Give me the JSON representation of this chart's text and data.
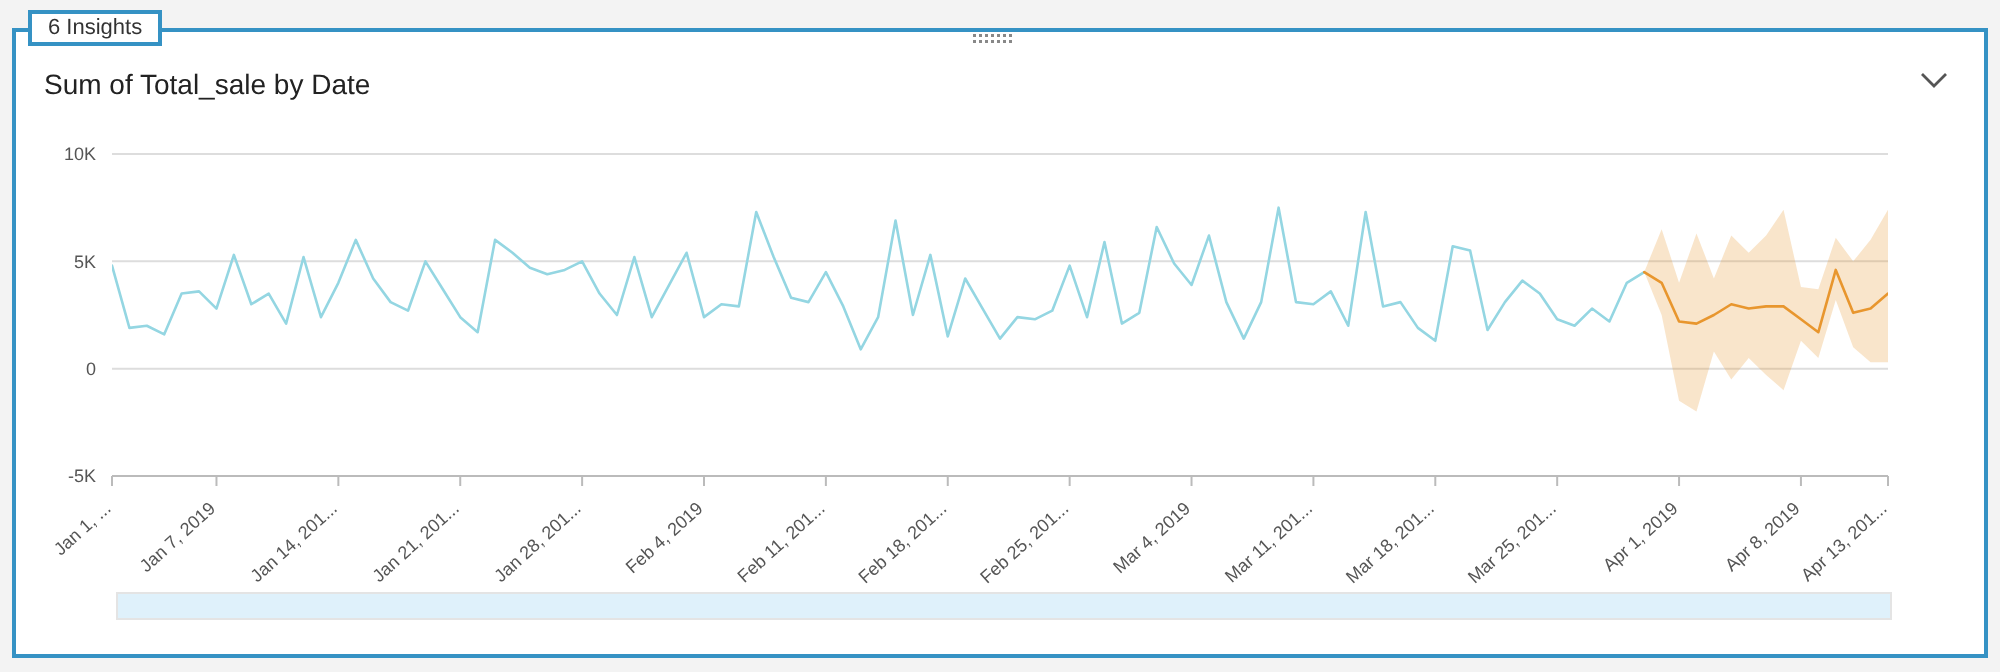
{
  "chart_data": {
    "type": "line",
    "title": "Sum of Total_sale by Date",
    "annotations": [
      "6 Insights"
    ],
    "x": [
      "2019-01-01",
      "2019-01-02",
      "2019-01-03",
      "2019-01-04",
      "2019-01-05",
      "2019-01-06",
      "2019-01-07",
      "2019-01-08",
      "2019-01-09",
      "2019-01-10",
      "2019-01-11",
      "2019-01-12",
      "2019-01-13",
      "2019-01-14",
      "2019-01-15",
      "2019-01-16",
      "2019-01-17",
      "2019-01-18",
      "2019-01-19",
      "2019-01-20",
      "2019-01-21",
      "2019-01-22",
      "2019-01-23",
      "2019-01-24",
      "2019-01-25",
      "2019-01-26",
      "2019-01-27",
      "2019-01-28",
      "2019-01-29",
      "2019-01-30",
      "2019-01-31",
      "2019-02-01",
      "2019-02-02",
      "2019-02-03",
      "2019-02-04",
      "2019-02-05",
      "2019-02-06",
      "2019-02-07",
      "2019-02-08",
      "2019-02-09",
      "2019-02-10",
      "2019-02-11",
      "2019-02-12",
      "2019-02-13",
      "2019-02-14",
      "2019-02-15",
      "2019-02-16",
      "2019-02-17",
      "2019-02-18",
      "2019-02-19",
      "2019-02-20",
      "2019-02-21",
      "2019-02-22",
      "2019-02-23",
      "2019-02-24",
      "2019-02-25",
      "2019-02-26",
      "2019-02-27",
      "2019-02-28",
      "2019-03-01",
      "2019-03-02",
      "2019-03-03",
      "2019-03-04",
      "2019-03-05",
      "2019-03-06",
      "2019-03-07",
      "2019-03-08",
      "2019-03-09",
      "2019-03-10",
      "2019-03-11",
      "2019-03-12",
      "2019-03-13",
      "2019-03-14",
      "2019-03-15",
      "2019-03-16",
      "2019-03-17",
      "2019-03-18",
      "2019-03-19",
      "2019-03-20",
      "2019-03-21",
      "2019-03-22",
      "2019-03-23",
      "2019-03-24",
      "2019-03-25",
      "2019-03-26",
      "2019-03-27",
      "2019-03-28",
      "2019-03-29",
      "2019-03-30"
    ],
    "series": [
      {
        "color": "#94d6e2",
        "values": [
          4800,
          1900,
          2000,
          1600,
          3500,
          3600,
          2800,
          5300,
          3000,
          3500,
          2100,
          5200,
          2400,
          4000,
          6000,
          4200,
          3100,
          2700,
          5000,
          3700,
          2400,
          1700,
          6000,
          5400,
          4700,
          4400,
          4600,
          5000,
          3500,
          2500,
          5200,
          2400,
          3900,
          5400,
          2400,
          3000,
          2900,
          7300,
          5200,
          3300,
          3100,
          4500,
          2900,
          900,
          2400,
          6900,
          2500,
          5300,
          1500,
          4200,
          2800,
          1400,
          2400,
          2300,
          2700,
          4800,
          2400,
          5900,
          2100,
          2600,
          6600,
          4900,
          3900,
          6200,
          3100,
          1400,
          3100,
          7500,
          3100,
          3000,
          3600,
          2000,
          7300,
          2900,
          3100,
          1900,
          1300,
          5700,
          5500,
          1800,
          3100,
          4100,
          3500,
          2300,
          2000,
          2800,
          2200,
          4000,
          4500
        ]
      },
      {
        "color": "#e8962e",
        "x": [
          "2019-03-30",
          "2019-03-31",
          "2019-04-01",
          "2019-04-02",
          "2019-04-03",
          "2019-04-04",
          "2019-04-05",
          "2019-04-06",
          "2019-04-07",
          "2019-04-08",
          "2019-04-09",
          "2019-04-10",
          "2019-04-11",
          "2019-04-12",
          "2019-04-13"
        ],
        "values": [
          4500,
          4000,
          2200,
          2100,
          2500,
          3000,
          2800,
          2900,
          2900,
          2300,
          1700,
          4600,
          2600,
          2800,
          3500
        ],
        "lower": [
          4500,
          2500,
          -1500,
          -2000,
          800,
          -500,
          500,
          -300,
          -1000,
          1300,
          500,
          3200,
          1000,
          300,
          300
        ],
        "upper": [
          4500,
          6500,
          4000,
          6300,
          4200,
          6200,
          5400,
          6200,
          7400,
          3800,
          3700,
          6100,
          5000,
          6000,
          7400
        ]
      }
    ],
    "ylim": [
      -5000,
      10000
    ],
    "yticks": [
      {
        "value": -5000,
        "label": "-5K"
      },
      {
        "value": 0,
        "label": "0"
      },
      {
        "value": 5000,
        "label": "5K"
      },
      {
        "value": 10000,
        "label": "10K"
      }
    ],
    "xlim": [
      "2019-01-01",
      "2019-04-13"
    ],
    "xticks": [
      {
        "value": "2019-01-01",
        "label": "Jan 1, ..."
      },
      {
        "value": "2019-01-07",
        "label": "Jan 7, 2019"
      },
      {
        "value": "2019-01-14",
        "label": "Jan 14, 201..."
      },
      {
        "value": "2019-01-21",
        "label": "Jan 21, 201..."
      },
      {
        "value": "2019-01-28",
        "label": "Jan 28, 201..."
      },
      {
        "value": "2019-02-04",
        "label": "Feb 4, 2019"
      },
      {
        "value": "2019-02-11",
        "label": "Feb 11, 201..."
      },
      {
        "value": "2019-02-18",
        "label": "Feb 18, 201..."
      },
      {
        "value": "2019-02-25",
        "label": "Feb 25, 201..."
      },
      {
        "value": "2019-03-04",
        "label": "Mar 4, 2019"
      },
      {
        "value": "2019-03-11",
        "label": "Mar 11, 201..."
      },
      {
        "value": "2019-03-18",
        "label": "Mar 18, 201..."
      },
      {
        "value": "2019-03-25",
        "label": "Mar 25, 201..."
      },
      {
        "value": "2019-04-01",
        "label": "Apr 1, 2019"
      },
      {
        "value": "2019-04-08",
        "label": "Apr 8, 2019"
      },
      {
        "value": "2019-04-13",
        "label": "Apr 13, 201..."
      }
    ],
    "grid": "y",
    "marker": "none"
  }
}
